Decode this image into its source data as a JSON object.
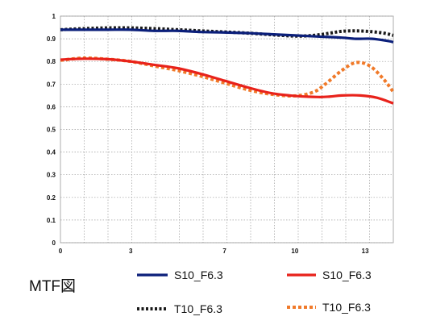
{
  "page": {
    "title": "MTF図"
  },
  "chart_data": {
    "type": "line",
    "title": "",
    "xlabel": "",
    "ylabel": "",
    "xlim": [
      0,
      14.2
    ],
    "ylim": [
      0,
      1
    ],
    "x_ticks": [
      0,
      3,
      7,
      10,
      13
    ],
    "x_tick_labels": [
      "0",
      "3",
      "7",
      "10",
      "13"
    ],
    "y_ticks": [
      0,
      0.1,
      0.2,
      0.3,
      0.4,
      0.5,
      0.6,
      0.7,
      0.8,
      0.9,
      1
    ],
    "y_tick_labels": [
      "0",
      "0.1",
      "0.2",
      "0.3",
      "0.4",
      "0.5",
      "0.6",
      "0.7",
      "0.8",
      "0.9",
      "1"
    ],
    "grid": true,
    "legend_position": "bottom",
    "series": [
      {
        "name": "S10_F6.3",
        "color": "#0b1f7a",
        "style": "solid",
        "x": [
          0,
          1,
          2,
          3,
          4,
          5,
          6,
          7,
          8,
          9,
          10,
          11,
          12,
          12.6,
          13.3,
          14,
          14.2
        ],
        "y": [
          0.94,
          0.94,
          0.94,
          0.94,
          0.935,
          0.935,
          0.93,
          0.928,
          0.925,
          0.92,
          0.915,
          0.91,
          0.905,
          0.9,
          0.9,
          0.89,
          0.885
        ]
      },
      {
        "name": "S10_F6.3",
        "color": "#e8221b",
        "style": "solid",
        "x": [
          0,
          1,
          2,
          3,
          4,
          5,
          6,
          7,
          8,
          9,
          10,
          11,
          11.5,
          12,
          12.8,
          13.5,
          14.2
        ],
        "y": [
          0.808,
          0.812,
          0.81,
          0.8,
          0.785,
          0.77,
          0.745,
          0.715,
          0.685,
          0.66,
          0.648,
          0.643,
          0.645,
          0.65,
          0.65,
          0.64,
          0.615
        ]
      },
      {
        "name": "T10_F6.3",
        "color": "#1a1a1a",
        "style": "dotted",
        "x": [
          0,
          1,
          2,
          3,
          4,
          5,
          6,
          7,
          8,
          9,
          10,
          10.8,
          11.5,
          12,
          12.6,
          13.2,
          13.8,
          14.2
        ],
        "y": [
          0.94,
          0.945,
          0.948,
          0.948,
          0.945,
          0.94,
          0.935,
          0.93,
          0.925,
          0.918,
          0.912,
          0.915,
          0.925,
          0.933,
          0.935,
          0.932,
          0.925,
          0.915
        ]
      },
      {
        "name": "T10_F6.3",
        "color": "#f07a2a",
        "style": "dotted",
        "x": [
          0,
          1,
          2,
          3,
          4,
          5,
          6,
          7,
          8,
          9,
          10,
          10.8,
          11.3,
          12,
          12.6,
          13.2,
          13.8,
          14.2
        ],
        "y": [
          0.805,
          0.815,
          0.81,
          0.8,
          0.78,
          0.76,
          0.735,
          0.705,
          0.675,
          0.655,
          0.648,
          0.665,
          0.7,
          0.76,
          0.795,
          0.78,
          0.72,
          0.665
        ]
      }
    ]
  }
}
